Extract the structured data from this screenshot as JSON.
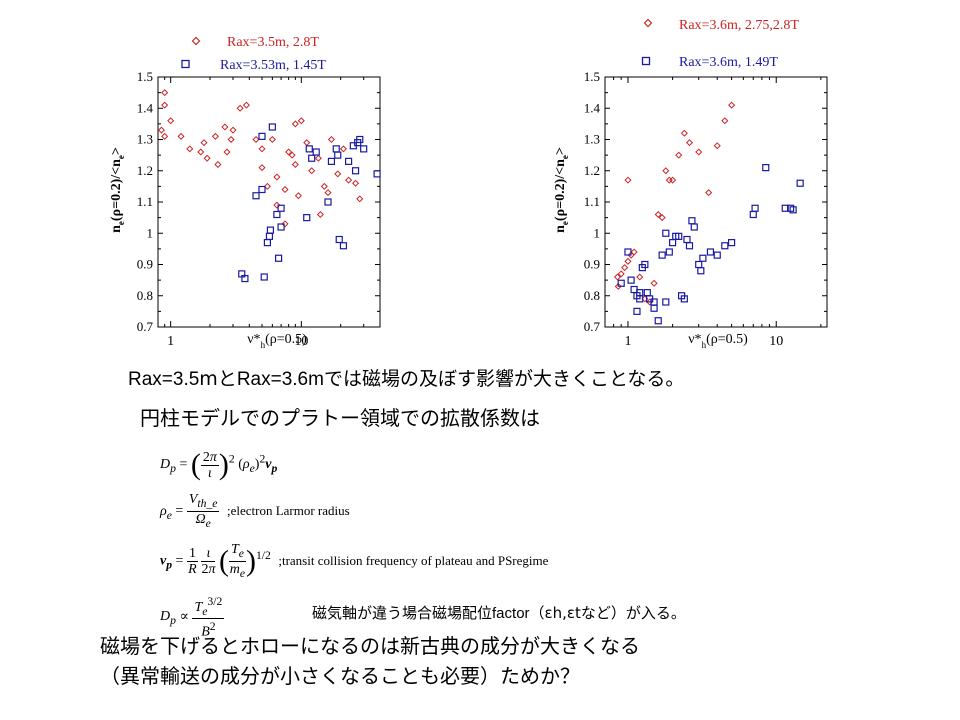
{
  "charts": [
    {
      "legend": [
        {
          "name": "Rax=3.5m, 2.8T",
          "color": "#cc2222",
          "marker": "diamond"
        },
        {
          "name": "Rax=3.53m, 1.45T",
          "color": "#1a1aa0",
          "marker": "square"
        }
      ],
      "xlabel_main": "ν*",
      "xlabel_sub": "h",
      "xlabel_tail": "(ρ=0.5)",
      "ylabel_pre": "n",
      "ylabel_sub": "e",
      "ylabel_mid": "(ρ=0.2)/<n",
      "ylabel_sub2": "e",
      "ylabel_end": ">",
      "x_ticks": [
        "1",
        "10"
      ],
      "y_ticks": [
        "0.7",
        "0.8",
        "0.9",
        "1",
        "1.1",
        "1.2",
        "1.3",
        "1.4",
        "1.5"
      ]
    },
    {
      "legend": [
        {
          "name": "Rax=3.6m, 2.75,2.8T",
          "color": "#cc2222",
          "marker": "diamond"
        },
        {
          "name": "Rax=3.6m, 1.49T",
          "color": "#1a1aa0",
          "marker": "square"
        }
      ],
      "xlabel_main": "ν*",
      "xlabel_sub": "h",
      "xlabel_tail": "(ρ=0.5)",
      "ylabel_pre": "n",
      "ylabel_sub": "e",
      "ylabel_mid": "(ρ=0.2)/<n",
      "ylabel_sub2": "e",
      "ylabel_end": ">",
      "x_ticks": [
        "1",
        "10"
      ],
      "y_ticks": [
        "0.7",
        "0.8",
        "0.9",
        "1",
        "1.1",
        "1.2",
        "1.3",
        "1.4",
        "1.5"
      ]
    }
  ],
  "chart_data": [
    {
      "type": "scatter",
      "x_scale": "log",
      "xlim": [
        0.8,
        40
      ],
      "ylim": [
        0.7,
        1.5
      ],
      "legend_position": "top",
      "series": [
        {
          "name": "Rax=3.5m, 2.8T",
          "color": "#cc2222",
          "marker": "diamond",
          "points": [
            [
              0.9,
              1.45
            ],
            [
              0.9,
              1.41
            ],
            [
              0.85,
              1.33
            ],
            [
              0.9,
              1.31
            ],
            [
              1.0,
              1.36
            ],
            [
              1.2,
              1.31
            ],
            [
              1.4,
              1.27
            ],
            [
              1.7,
              1.26
            ],
            [
              1.9,
              1.24
            ],
            [
              1.8,
              1.29
            ],
            [
              2.2,
              1.31
            ],
            [
              2.3,
              1.22
            ],
            [
              2.6,
              1.34
            ],
            [
              2.9,
              1.3
            ],
            [
              3.0,
              1.33
            ],
            [
              2.7,
              1.26
            ],
            [
              3.4,
              1.4
            ],
            [
              3.8,
              1.41
            ],
            [
              4.5,
              1.3
            ],
            [
              5.0,
              1.27
            ],
            [
              5.0,
              1.21
            ],
            [
              5.5,
              1.15
            ],
            [
              6.0,
              1.3
            ],
            [
              6.5,
              1.18
            ],
            [
              6.5,
              1.09
            ],
            [
              7.5,
              1.14
            ],
            [
              7.5,
              1.03
            ],
            [
              8.0,
              1.26
            ],
            [
              8.5,
              1.25
            ],
            [
              9.0,
              1.35
            ],
            [
              9.5,
              1.12
            ],
            [
              9.0,
              1.22
            ],
            [
              10.0,
              1.36
            ],
            [
              11.0,
              1.29
            ],
            [
              12.0,
              1.2
            ],
            [
              13.5,
              1.24
            ],
            [
              15.0,
              1.15
            ],
            [
              16.0,
              1.13
            ],
            [
              14.0,
              1.06
            ],
            [
              17.0,
              1.3
            ],
            [
              19.0,
              1.19
            ],
            [
              21.0,
              1.27
            ],
            [
              23.0,
              1.17
            ],
            [
              26.0,
              1.16
            ],
            [
              28.0,
              1.11
            ]
          ]
        },
        {
          "name": "Rax=3.53m, 1.45T",
          "color": "#1a1aa0",
          "marker": "square",
          "points": [
            [
              3.5,
              0.87
            ],
            [
              3.7,
              0.855
            ],
            [
              4.5,
              1.12
            ],
            [
              5.0,
              1.31
            ],
            [
              5.0,
              1.14
            ],
            [
              5.2,
              0.86
            ],
            [
              5.5,
              0.97
            ],
            [
              5.7,
              0.99
            ],
            [
              5.8,
              1.01
            ],
            [
              6.0,
              1.34
            ],
            [
              6.5,
              1.06
            ],
            [
              6.7,
              0.92
            ],
            [
              7.0,
              1.08
            ],
            [
              7.0,
              1.02
            ],
            [
              11.5,
              1.27
            ],
            [
              12.0,
              1.24
            ],
            [
              11.0,
              1.05
            ],
            [
              13.0,
              1.26
            ],
            [
              16.0,
              1.1
            ],
            [
              17.0,
              1.23
            ],
            [
              18.5,
              1.27
            ],
            [
              19.0,
              1.25
            ],
            [
              19.5,
              0.98
            ],
            [
              21.0,
              0.96
            ],
            [
              23.0,
              1.23
            ],
            [
              25.0,
              1.28
            ],
            [
              26.0,
              1.2
            ],
            [
              27.0,
              1.29
            ],
            [
              28.0,
              1.3
            ],
            [
              30.0,
              1.27
            ],
            [
              38.0,
              1.19
            ]
          ]
        }
      ]
    },
    {
      "type": "scatter",
      "x_scale": "log",
      "xlim": [
        0.7,
        22
      ],
      "ylim": [
        0.7,
        1.5
      ],
      "legend_position": "top",
      "series": [
        {
          "name": "Rax=3.6m, 2.75,2.8T",
          "color": "#cc2222",
          "marker": "diamond",
          "points": [
            [
              0.85,
              0.86
            ],
            [
              0.86,
              0.83
            ],
            [
              0.9,
              0.87
            ],
            [
              0.95,
              0.89
            ],
            [
              1.0,
              0.91
            ],
            [
              1.0,
              1.17
            ],
            [
              1.05,
              0.93
            ],
            [
              1.1,
              0.94
            ],
            [
              1.2,
              0.86
            ],
            [
              1.3,
              0.79
            ],
            [
              1.4,
              0.78
            ],
            [
              1.5,
              0.84
            ],
            [
              1.6,
              1.06
            ],
            [
              1.7,
              1.05
            ],
            [
              1.8,
              1.2
            ],
            [
              1.9,
              1.17
            ],
            [
              2.0,
              1.17
            ],
            [
              2.2,
              1.25
            ],
            [
              2.4,
              1.32
            ],
            [
              2.6,
              1.29
            ],
            [
              3.0,
              1.26
            ],
            [
              3.5,
              1.13
            ],
            [
              4.0,
              1.28
            ],
            [
              4.5,
              1.36
            ],
            [
              5.0,
              1.41
            ]
          ]
        },
        {
          "name": "Rax=3.6m, 1.49T",
          "color": "#1a1aa0",
          "marker": "square",
          "points": [
            [
              0.9,
              0.84
            ],
            [
              1.0,
              0.94
            ],
            [
              1.05,
              0.85
            ],
            [
              1.1,
              0.82
            ],
            [
              1.15,
              0.8
            ],
            [
              1.15,
              0.75
            ],
            [
              1.2,
              0.81
            ],
            [
              1.2,
              0.79
            ],
            [
              1.25,
              0.89
            ],
            [
              1.3,
              0.9
            ],
            [
              1.35,
              0.81
            ],
            [
              1.4,
              0.79
            ],
            [
              1.5,
              0.78
            ],
            [
              1.5,
              0.76
            ],
            [
              1.6,
              0.72
            ],
            [
              1.7,
              0.93
            ],
            [
              1.8,
              1.0
            ],
            [
              1.8,
              0.78
            ],
            [
              1.9,
              0.94
            ],
            [
              2.0,
              0.97
            ],
            [
              2.1,
              0.99
            ],
            [
              2.2,
              0.99
            ],
            [
              2.3,
              0.8
            ],
            [
              2.4,
              0.79
            ],
            [
              2.5,
              0.98
            ],
            [
              2.6,
              0.96
            ],
            [
              2.7,
              1.04
            ],
            [
              2.8,
              1.02
            ],
            [
              3.0,
              0.9
            ],
            [
              3.1,
              0.88
            ],
            [
              3.2,
              0.92
            ],
            [
              3.6,
              0.94
            ],
            [
              4.0,
              0.93
            ],
            [
              4.5,
              0.96
            ],
            [
              5.0,
              0.97
            ],
            [
              7.0,
              1.06
            ],
            [
              7.2,
              1.08
            ],
            [
              8.5,
              1.21
            ],
            [
              11.5,
              1.08
            ],
            [
              12.5,
              1.08
            ],
            [
              13.0,
              1.075
            ],
            [
              14.5,
              1.16
            ]
          ]
        }
      ]
    }
  ],
  "text": {
    "line1_a": "Rax=3.5",
    "line1_b": "mと",
    "line1_c": "Rax=3.6m",
    "line1_d": "では磁場の及ぼす影響が大きくことなる。",
    "line2": "円柱モデルでのプラトー領域での拡散係数は",
    "formula_note1": ";electron Larmor radius",
    "formula_note2": ";transit collision  frequency of plateau and PSregime",
    "line3_a": "磁気軸が違う場合磁場配位",
    "line3_b": "factor",
    "line3_c": "（εh,εtなど）が入る。",
    "line4": "磁場を下げるとホローになるのは新古典の成分が大きくなる",
    "line5": "（異常輸送の成分が小さくなることも必要）ためか？"
  }
}
